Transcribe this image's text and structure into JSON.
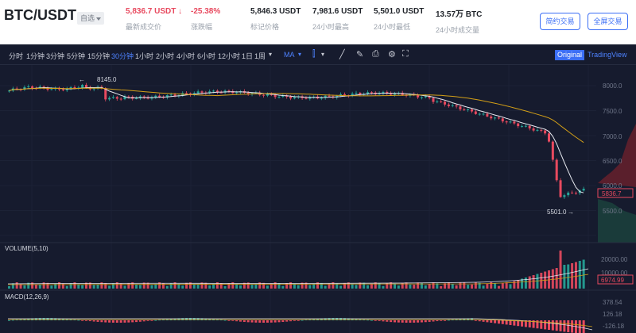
{
  "header": {
    "pair": "BTC/USDT",
    "watch_label": "自选",
    "last_price": "5,836.7 USDT",
    "last_price_arrow": "↓",
    "last_price_label": "最新成交价",
    "change": "-25.38%",
    "change_label": "涨跌幅",
    "mark_price": "5,846.3 USDT",
    "mark_price_label": "标记价格",
    "high_24h": "7,981.6 USDT",
    "high_24h_label": "24小时最高",
    "low_24h": "5,501.0 USDT",
    "low_24h_label": "24小时最低",
    "volume_24h": "13.57万 BTC",
    "volume_24h_label": "24小时成交量",
    "simple_trade_btn": "简约交易",
    "fullscreen_trade_btn": "全屏交易"
  },
  "toolbar": {
    "timeframes": [
      "分时",
      "1分钟",
      "3分钟",
      "5分钟",
      "15分钟",
      "30分钟",
      "1小时",
      "2小时",
      "4小时",
      "6小时",
      "12小时",
      "1日",
      "1周"
    ],
    "active_timeframe": "30分钟",
    "ma_label": "MA",
    "view_original": "Original",
    "view_tradingview": "TradingView"
  },
  "price_panel": {
    "y_ticks": [
      "8000.0",
      "7500.0",
      "7000.0",
      "6500.0",
      "6000.0",
      "5500.0"
    ],
    "high_marker": "8145.0",
    "low_marker": "5501.0",
    "current_price_tag": "5836.7"
  },
  "volume_panel": {
    "title": "VOLUME(5,10)",
    "y_ticks": [
      "20000.00",
      "10000.00"
    ],
    "current_tag": "6974.99"
  },
  "macd_panel": {
    "title": "MACD(12,26,9)",
    "y_ticks": [
      "378.54",
      "126.18",
      "-126.18"
    ]
  },
  "colors": {
    "up": "#26a69a",
    "down": "#e84a5f",
    "accent": "#3b6ef5",
    "bg": "#161b2e"
  }
}
